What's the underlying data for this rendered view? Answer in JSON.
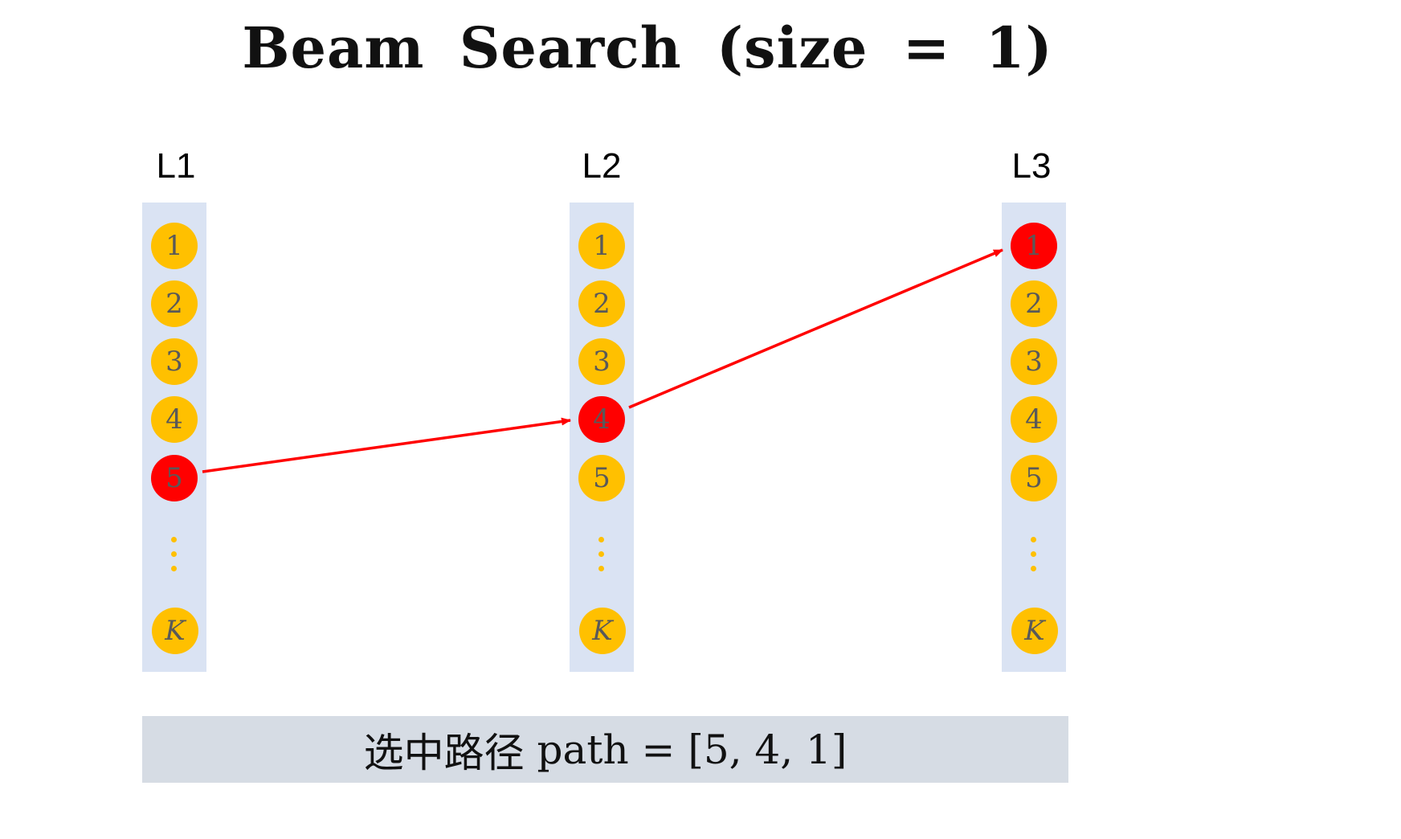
{
  "title": "Beam Search (size = 1)",
  "layers": [
    {
      "label": "L1",
      "nodes": [
        "1",
        "2",
        "3",
        "4",
        "5"
      ],
      "last_node": "K",
      "selected": "5"
    },
    {
      "label": "L2",
      "nodes": [
        "1",
        "2",
        "3",
        "4",
        "5"
      ],
      "last_node": "K",
      "selected": "4"
    },
    {
      "label": "L3",
      "nodes": [
        "1",
        "2",
        "3",
        "4",
        "5"
      ],
      "last_node": "K",
      "selected": "1"
    }
  ],
  "result": {
    "label": "选中路径",
    "path_expression": "path = [5, 4, 1]"
  },
  "colors": {
    "node": "#ffc000",
    "selected_node": "#ff0000",
    "arrow": "#ff0000",
    "column_panel": "#dae3f3",
    "result_bar": "#d6dce4"
  }
}
